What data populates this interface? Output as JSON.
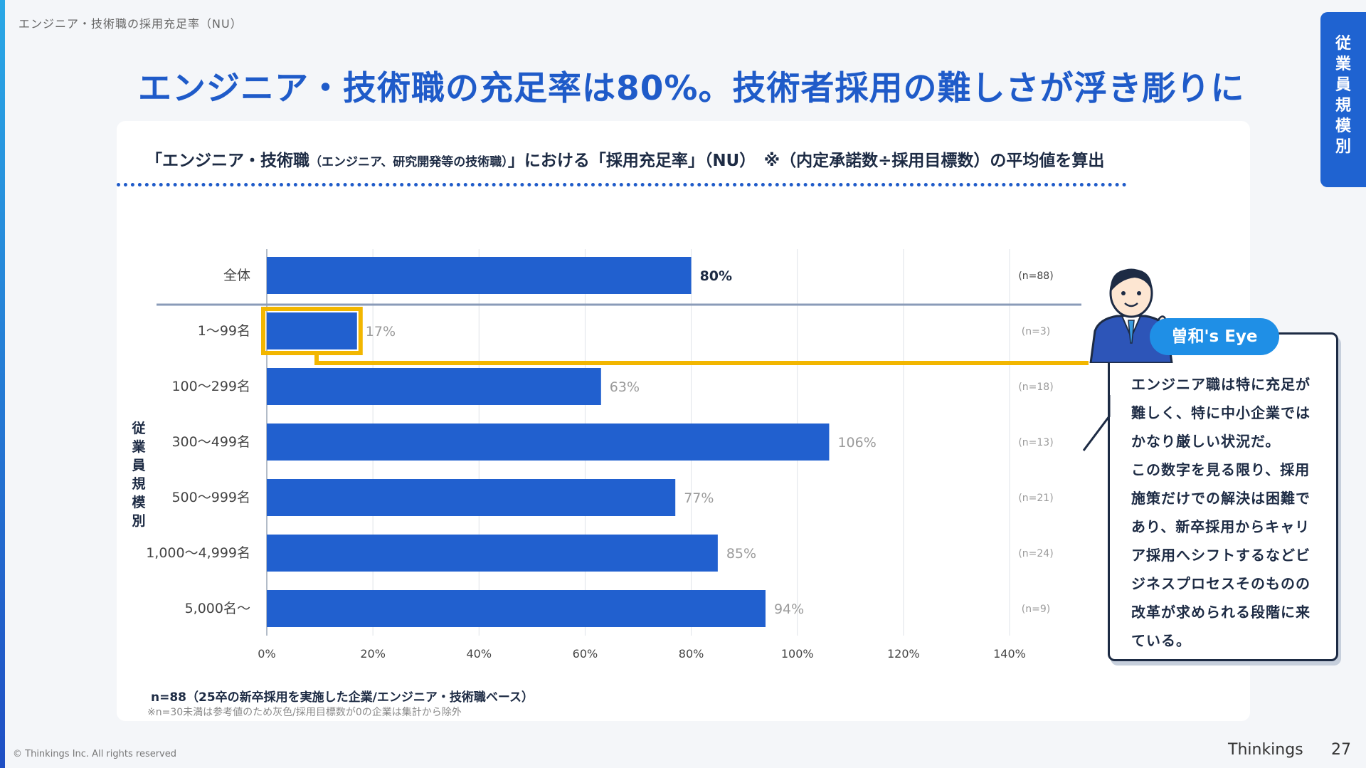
{
  "page": {
    "breadcrumb": "エンジニア・技術職の採用充足率（NU）",
    "side_tab": [
      "従",
      "業",
      "員",
      "規",
      "模",
      "別"
    ],
    "headline": "エンジニア・技術職の充足率は80%。技術者採用の難しさが浮き彫りに",
    "subtitle_main": "「エンジニア・技術職",
    "subtitle_small": "（エンジニア、研究開発等の技術職）",
    "subtitle_rest": "」における「採用充足率」（NU）　※（内定承諾数÷採用目標数）の平均値を算出",
    "axis_group_label": [
      "従",
      "業",
      "員",
      "規",
      "模",
      "別"
    ],
    "footnote1": "n=88（25卒の新卒採用を実施した企業/エンジニア・技術職ベース）",
    "footnote2": "※n=30未満は参考値のため灰色/採用目標数が0の企業は集計から除外",
    "copyright": "© Thinkings Inc. All rights reserved",
    "brand": "Thinkings",
    "page_number": "27",
    "callout_badge": "曽和's Eye",
    "callout_lines": [
      "エンジニア職は特に充足が",
      "難しく、特に中小企業では",
      "かなり厳しい状況だ。",
      "この数字を見る限り、採用",
      "施策だけでの解決は困難で",
      "あり、新卒採用からキャリ",
      "ア採用へシフトするなどビ",
      "ジネスプロセスそのものの",
      "改革が求められる段階に来",
      "ている。"
    ]
  },
  "colors": {
    "bar": "#2160cf",
    "highlight": "#f2b600",
    "accent": "#1f5bc9",
    "label_strong": "#1d2b44",
    "label_muted": "#9a9a9a"
  },
  "chart_data": {
    "type": "bar",
    "orientation": "horizontal",
    "categories": [
      "全体",
      "1〜99名",
      "100〜299名",
      "300〜499名",
      "500〜999名",
      "1,000〜4,999名",
      "5,000名〜"
    ],
    "values": [
      80,
      17,
      63,
      106,
      77,
      85,
      94
    ],
    "value_labels": [
      "80%",
      "17%",
      "63%",
      "106%",
      "77%",
      "85%",
      "94%"
    ],
    "n_labels": [
      "(n=88)",
      "(n=3)",
      "(n=18)",
      "(n=13)",
      "(n=21)",
      "(n=24)",
      "(n=9)"
    ],
    "strong_label": [
      true,
      false,
      false,
      false,
      false,
      false,
      false
    ],
    "highlighted_category": "1〜99名",
    "xlim": [
      0,
      140
    ],
    "xticks": [
      0,
      20,
      40,
      60,
      80,
      100,
      120,
      140
    ],
    "xtick_labels": [
      "0%",
      "20%",
      "40%",
      "60%",
      "80%",
      "100%",
      "120%",
      "140%"
    ],
    "grid": true
  }
}
